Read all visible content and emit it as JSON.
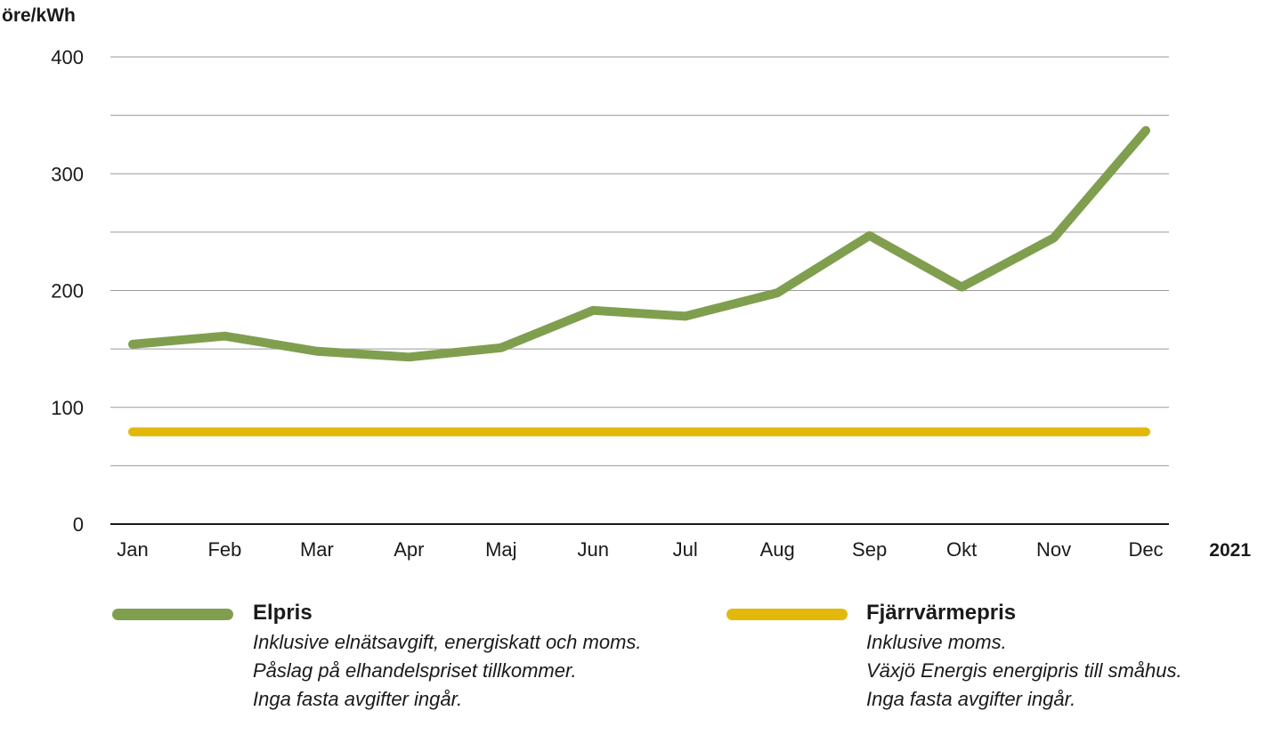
{
  "chart_data": {
    "type": "line",
    "ylabel": "öre/kWh",
    "xlabel": "2021",
    "ylim": [
      0,
      400
    ],
    "yticks": [
      "0",
      "100",
      "200",
      "300",
      "400"
    ],
    "grid": true,
    "categories": [
      "Jan",
      "Feb",
      "Mar",
      "Apr",
      "Maj",
      "Jun",
      "Jul",
      "Aug",
      "Sep",
      "Okt",
      "Nov",
      "Dec"
    ],
    "series": [
      {
        "name": "Elpris",
        "color": "#7f9f4f",
        "values": [
          154,
          161,
          148,
          143,
          151,
          183,
          178,
          198,
          247,
          203,
          245,
          337
        ]
      },
      {
        "name": "Fjärrvärmepris",
        "color": "#e2b80a",
        "values": [
          79,
          79,
          79,
          79,
          79,
          79,
          79,
          79,
          79,
          79,
          79,
          79
        ]
      }
    ]
  },
  "legend": [
    {
      "name": "Elpris",
      "notes": [
        "Inklusive elnätsavgift, energiskatt och moms.",
        "Påslag på elhandelspriset tillkommer.",
        "Inga fasta avgifter ingår."
      ]
    },
    {
      "name": "Fjärrvärmepris",
      "notes": [
        "Inklusive moms.",
        "Växjö Energis energipris till småhus.",
        "Inga fasta avgifter ingår."
      ]
    }
  ]
}
